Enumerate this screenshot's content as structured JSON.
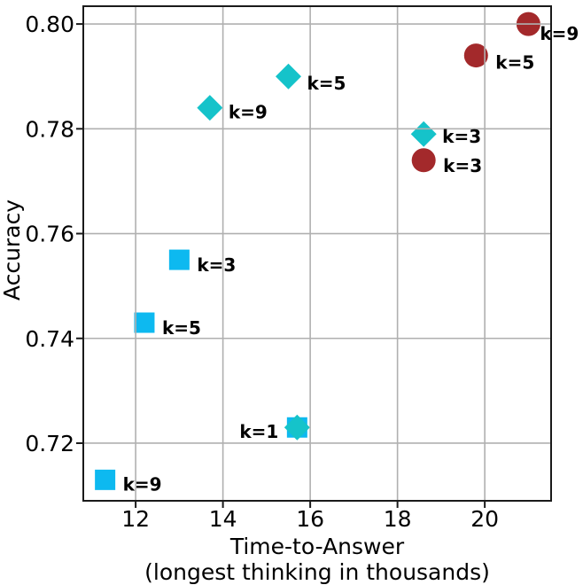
{
  "figure": {
    "background": "#ffffff"
  },
  "chart_data": {
    "type": "scatter",
    "title": "",
    "xlabel": "Time-to-Answer",
    "xlabel_sub": "(longest thinking in thousands)",
    "ylabel": "Accuracy",
    "xlim": [
      10.8,
      21.52
    ],
    "ylim": [
      0.709,
      0.8034
    ],
    "grid": true,
    "grid_over_markers": true,
    "legend": "none",
    "style": {
      "grid_color": "#b0b0b0",
      "spine_color": "#1a1a1a",
      "text_color": "#000000",
      "square_color": "#0db9f0",
      "diamond_color": "#15c3ca",
      "circle_color": "#a3292b"
    },
    "xticks": [
      {
        "value": 12,
        "label": "12"
      },
      {
        "value": 14,
        "label": "14"
      },
      {
        "value": 16,
        "label": "16"
      },
      {
        "value": 18,
        "label": "18"
      },
      {
        "value": 20,
        "label": "20"
      }
    ],
    "yticks": [
      {
        "value": 0.72,
        "label": "0.72"
      },
      {
        "value": 0.74,
        "label": "0.74"
      },
      {
        "value": 0.76,
        "label": "0.76"
      },
      {
        "value": 0.78,
        "label": "0.78"
      },
      {
        "value": 0.8,
        "label": "0.80"
      }
    ],
    "series": [
      {
        "name": "squares",
        "marker": "square",
        "color": "#0db9f0",
        "size": 23,
        "points": [
          {
            "x": 13.0,
            "y": 0.755,
            "label": "k=3",
            "label_side": "right",
            "label_dx": 20,
            "label_dy": 6
          },
          {
            "x": 12.2,
            "y": 0.743,
            "label": "k=5",
            "label_side": "right",
            "label_dx": 20,
            "label_dy": 6
          },
          {
            "x": 11.3,
            "y": 0.713,
            "label": "k=9",
            "label_side": "right",
            "label_dx": 20,
            "label_dy": 5
          },
          {
            "x": 15.7,
            "y": 0.723,
            "label": "",
            "label_side": "right",
            "label_dx": 0,
            "label_dy": 0
          }
        ]
      },
      {
        "name": "diamonds",
        "marker": "diamond",
        "color": "#15c3ca",
        "size": 29,
        "points": [
          {
            "x": 13.7,
            "y": 0.784,
            "label": "k=9",
            "label_side": "right",
            "label_dx": 21,
            "label_dy": 5
          },
          {
            "x": 15.5,
            "y": 0.79,
            "label": "k=5",
            "label_side": "right",
            "label_dx": 21,
            "label_dy": 8
          },
          {
            "x": 18.6,
            "y": 0.779,
            "label": "k=3",
            "label_side": "right",
            "label_dx": 21,
            "label_dy": 3
          },
          {
            "x": 15.7,
            "y": 0.723,
            "label": "k=1",
            "label_side": "left",
            "label_dx": -21,
            "label_dy": 5
          }
        ]
      },
      {
        "name": "circles",
        "marker": "circle",
        "color": "#a3292b",
        "size": 27,
        "points": [
          {
            "x": 21.0,
            "y": 0.8,
            "label": "k=9",
            "label_side": "right",
            "label_dx": 13,
            "label_dy": 11
          },
          {
            "x": 19.8,
            "y": 0.794,
            "label": "k=5",
            "label_side": "right",
            "label_dx": 22,
            "label_dy": 8
          },
          {
            "x": 18.6,
            "y": 0.774,
            "label": "k=3",
            "label_side": "right",
            "label_dx": 22,
            "label_dy": 6
          }
        ]
      }
    ]
  }
}
